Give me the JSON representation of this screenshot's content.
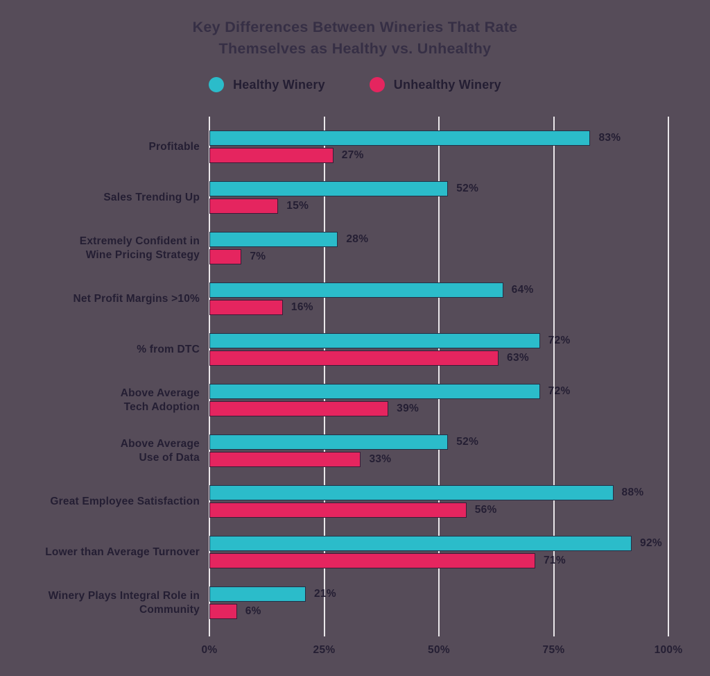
{
  "title": {
    "line1": "Key Differences Between Wineries That Rate",
    "line2": "Themselves as Healthy vs. Unhealthy"
  },
  "legend": {
    "items": [
      {
        "label": "Healthy Winery",
        "color": "#2bbcca"
      },
      {
        "label": "Unhealthy Winery",
        "color": "#e5255f"
      }
    ]
  },
  "colors": {
    "background": "#564c59",
    "healthy_bar": "#2bbcca",
    "unhealthy_bar": "#e5255f",
    "gridline": "#eae7ea",
    "title_text": "#362f45",
    "label_text": "#241e33"
  },
  "chart_data": {
    "type": "bar",
    "orientation": "horizontal",
    "title": "Key Differences Between Wineries That Rate Themselves as Healthy vs. Unhealthy",
    "categories": [
      "Profitable",
      "Sales Trending Up",
      "Extremely Confident in\nWine Pricing Strategy",
      "Net Profit Margins >10%",
      "% from DTC",
      "Above Average\nTech Adoption",
      "Above Average\nUse of Data",
      "Great Employee Satisfaction",
      "Lower than Average Turnover",
      "Winery Plays Integral Role in\nCommunity"
    ],
    "series": [
      {
        "name": "Healthy Winery",
        "color": "#2bbcca",
        "values": [
          83,
          52,
          28,
          64,
          72,
          72,
          52,
          88,
          92,
          21
        ]
      },
      {
        "name": "Unhealthy Winery",
        "color": "#e5255f",
        "values": [
          27,
          15,
          7,
          16,
          63,
          39,
          33,
          56,
          71,
          6
        ]
      }
    ],
    "value_suffix": "%",
    "x_ticks": [
      "0%",
      "25%",
      "50%",
      "75%",
      "100%"
    ],
    "x_tick_values": [
      0,
      25,
      50,
      75,
      100
    ],
    "xlim": [
      0,
      100
    ],
    "grid": true,
    "legend_position": "top"
  }
}
